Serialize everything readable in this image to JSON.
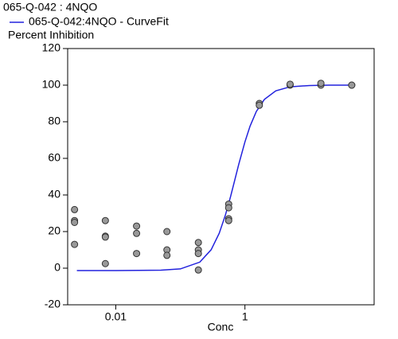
{
  "chart_data": {
    "type": "scatter",
    "title": "065-Q-042  : 4NQO",
    "y_label": "Percent Inhibition",
    "x_label": "Conc",
    "log_x": true,
    "xlim": [
      0.0018,
      100
    ],
    "ylim": [
      -20,
      120
    ],
    "xticks": [
      0.01,
      1
    ],
    "yticks": [
      -20,
      0,
      20,
      40,
      60,
      80,
      100,
      120
    ],
    "series": [
      {
        "name": "065-Q-042:4NQO - CurveFit",
        "type": "line",
        "color": "#2222dd",
        "x": [
          0.0025,
          0.01,
          0.05,
          0.1,
          0.2,
          0.3,
          0.4,
          0.5,
          0.6,
          0.7,
          0.8,
          1,
          1.2,
          1.5,
          2,
          3,
          5,
          10,
          20,
          45
        ],
        "values": [
          -1.3,
          -1.3,
          -1.1,
          -0.4,
          3.3,
          10.1,
          19.1,
          29.2,
          39.2,
          48.5,
          56.6,
          69.0,
          77.6,
          85.6,
          92.2,
          96.9,
          99.1,
          99.8,
          100,
          100
        ]
      },
      {
        "type": "scatter",
        "color": "#999999",
        "x": [
          0.0023,
          0.0023,
          0.0023,
          0.0023,
          0.0069,
          0.0069,
          0.0069,
          0.0069,
          0.021,
          0.021,
          0.021,
          0.062,
          0.062,
          0.062,
          0.19,
          0.19,
          0.19,
          0.19,
          0.56,
          0.56,
          0.56,
          0.56,
          1.67,
          1.67,
          5,
          5,
          15,
          15,
          45,
          45
        ],
        "values": [
          32,
          26,
          25,
          13,
          26,
          17.5,
          17,
          2.5,
          23,
          19,
          8,
          20,
          10,
          7,
          14,
          10,
          8,
          -1,
          35,
          33,
          27,
          26,
          90,
          89,
          100,
          100.5,
          100,
          101,
          100,
          100
        ]
      }
    ]
  }
}
